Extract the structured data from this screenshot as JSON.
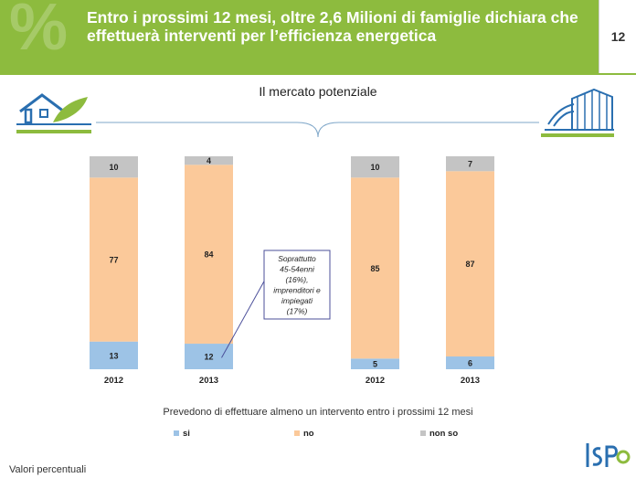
{
  "header": {
    "title": "Entro i prossimi 12 mesi, oltre 2,6 Milioni di famiglie dichiara che effettuerà interventi per l’efficienza energetica",
    "page_number": "12",
    "deco_symbol": "%"
  },
  "subtitle": "Il mercato potenziale",
  "chart_data": {
    "type": "bar",
    "stacked": true,
    "percent": true,
    "categories": [
      "2012",
      "2013",
      "2012",
      "2013"
    ],
    "series": [
      {
        "name": "si",
        "values": [
          13,
          12,
          5,
          6
        ],
        "color": "#9dc3e6"
      },
      {
        "name": "no",
        "values": [
          77,
          84,
          85,
          87
        ],
        "color": "#fbc99a"
      },
      {
        "name": "non so",
        "values": [
          10,
          4,
          10,
          7
        ],
        "color": "#c4c4c4"
      }
    ],
    "xlabel": "Prevedono di effettuare almeno un intervento entro i prossimi 12 mesi",
    "legend_position": "bottom",
    "annotation": {
      "lines": [
        "Soprattutto",
        "45-54enni",
        "(16%),",
        "imprenditori e",
        "impiegati",
        "(17%)"
      ],
      "target_category_index": 1,
      "target_series": "si"
    }
  },
  "footer": {
    "note": "Valori percentuali",
    "logo_text": "ISPO"
  }
}
